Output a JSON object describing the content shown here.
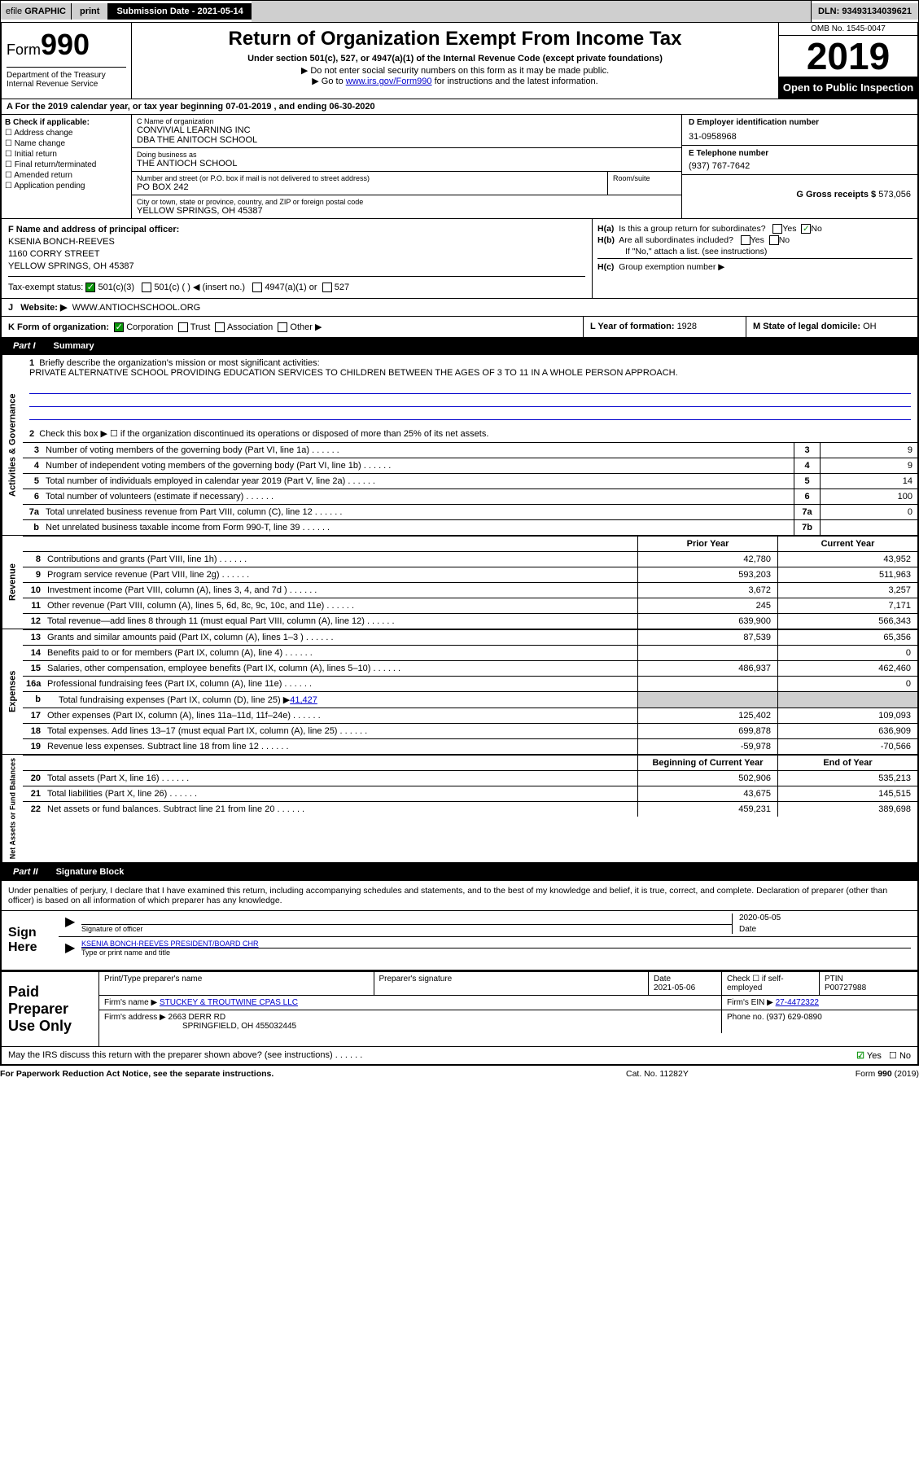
{
  "top_bar": {
    "efile_pre": "efile ",
    "efile_graphic": "GRAPHIC",
    "print": "print",
    "subdate_label": "Submission Date - ",
    "subdate_val": "2021-05-14",
    "dln_label": "DLN: ",
    "dln_val": "93493134039621"
  },
  "header": {
    "form_pre": "Form",
    "form_num": "990",
    "title": "Return of Organization Exempt From Income Tax",
    "sub1": "Under section 501(c), 527, or 4947(a)(1) of the Internal Revenue Code (except private foundations)",
    "sub2": "▶ Do not enter social security numbers on this form as it may be made public.",
    "sub3_pre": "▶ Go to ",
    "sub3_link": "www.irs.gov/Form990",
    "sub3_post": " for instructions and the latest information.",
    "dept1": "Department of the Treasury",
    "dept2": "Internal Revenue Service",
    "omb": "OMB No. 1545-0047",
    "year": "2019",
    "open_pub": "Open to Public Inspection"
  },
  "period": {
    "line_a": "A For the 2019 calendar year, or tax year beginning ",
    "begin": "07-01-2019",
    "mid": " , and ending ",
    "end": "06-30-2020"
  },
  "col_b": {
    "label": "B Check if applicable:",
    "items": [
      "Address change",
      "Name change",
      "Initial return",
      "Final return/terminated",
      "Amended return",
      "Application pending"
    ]
  },
  "col_c": {
    "c_label": "C Name of organization",
    "c_name1": "CONVIVIAL LEARNING INC",
    "c_name2": "DBA THE ANITOCH SCHOOL",
    "dba_label": "Doing business as",
    "dba": "THE ANTIOCH SCHOOL",
    "addr_label": "Number and street (or P.O. box if mail is not delivered to street address)",
    "addr": "PO BOX 242",
    "room_label": "Room/suite",
    "city_label": "City or town, state or province, country, and ZIP or foreign postal code",
    "city": "YELLOW SPRINGS, OH  45387",
    "f_label": "F  Name and address of principal officer:",
    "f_name": "KSENIA BONCH-REEVES",
    "f_addr1": "1160 CORRY STREET",
    "f_addr2": "YELLOW SPRINGS, OH  45387"
  },
  "col_right": {
    "d_label": "D Employer identification number",
    "d_val": "31-0958968",
    "e_label": "E Telephone number",
    "e_val": "(937) 767-7642",
    "g_label": "G Gross receipts $ ",
    "g_val": "573,056"
  },
  "tax_exempt": {
    "label": "Tax-exempt status:",
    "opt1": "501(c)(3)",
    "opt2": "501(c) (  ) ◀ (insert no.)",
    "opt3": "4947(a)(1) or",
    "opt4": "527"
  },
  "h_block": {
    "ha1": "H(a)",
    "ha2": "Is this a group return for subordinates?",
    "hb1": "H(b)",
    "hb2": "Are all subordinates included?",
    "hb3": "If \"No,\" attach a list. (see instructions)",
    "hc1": "H(c)",
    "hc2": "Group exemption number ▶",
    "yes": "Yes",
    "no": "No"
  },
  "website": {
    "j": "J",
    "label": "Website: ▶",
    "val": "WWW.ANTIOCHSCHOOL.ORG"
  },
  "k_row": {
    "k_label": "K Form of organization:",
    "k_opts": [
      "Corporation",
      "Trust",
      "Association",
      "Other ▶"
    ],
    "l_label": "L Year of formation: ",
    "l_val": "1928",
    "m_label": "M State of legal domicile: ",
    "m_val": "OH"
  },
  "part1": {
    "part": "Part I",
    "title": "Summary"
  },
  "summary": {
    "side1": "Activities & Governance",
    "q1_n": "1",
    "q1": "Briefly describe the organization's mission or most significant activities:",
    "q1_text": "PRIVATE ALTERNATIVE SCHOOL PROVIDING EDUCATION SERVICES TO CHILDREN BETWEEN THE AGES OF 3 TO 11 IN A WHOLE PERSON APPROACH.",
    "q2_n": "2",
    "q2": "Check this box ▶ ☐  if the organization discontinued its operations or disposed of more than 25% of its net assets.",
    "rows_a": [
      {
        "n": "3",
        "desc": "Number of voting members of the governing body (Part VI, line 1a)",
        "box": "3",
        "val": "9"
      },
      {
        "n": "4",
        "desc": "Number of independent voting members of the governing body (Part VI, line 1b)",
        "box": "4",
        "val": "9"
      },
      {
        "n": "5",
        "desc": "Total number of individuals employed in calendar year 2019 (Part V, line 2a)",
        "box": "5",
        "val": "14"
      },
      {
        "n": "6",
        "desc": "Total number of volunteers (estimate if necessary)",
        "box": "6",
        "val": "100"
      },
      {
        "n": "7a",
        "desc": "Total unrelated business revenue from Part VIII, column (C), line 12",
        "box": "7a",
        "val": "0"
      },
      {
        "n": "b",
        "desc": "Net unrelated business taxable income from Form 990-T, line 39",
        "box": "7b",
        "val": ""
      }
    ],
    "hdr_prior": "Prior Year",
    "hdr_current": "Current Year",
    "side2": "Revenue",
    "rows_r": [
      {
        "n": "8",
        "desc": "Contributions and grants (Part VIII, line 1h)",
        "c1": "42,780",
        "c2": "43,952"
      },
      {
        "n": "9",
        "desc": "Program service revenue (Part VIII, line 2g)",
        "c1": "593,203",
        "c2": "511,963"
      },
      {
        "n": "10",
        "desc": "Investment income (Part VIII, column (A), lines 3, 4, and 7d )",
        "c1": "3,672",
        "c2": "3,257"
      },
      {
        "n": "11",
        "desc": "Other revenue (Part VIII, column (A), lines 5, 6d, 8c, 9c, 10c, and 11e)",
        "c1": "245",
        "c2": "7,171"
      },
      {
        "n": "12",
        "desc": "Total revenue—add lines 8 through 11 (must equal Part VIII, column (A), line 12)",
        "c1": "639,900",
        "c2": "566,343"
      }
    ],
    "side3": "Expenses",
    "rows_e": [
      {
        "n": "13",
        "desc": "Grants and similar amounts paid (Part IX, column (A), lines 1–3 )",
        "c1": "87,539",
        "c2": "65,356"
      },
      {
        "n": "14",
        "desc": "Benefits paid to or for members (Part IX, column (A), line 4)",
        "c1": "",
        "c2": "0"
      },
      {
        "n": "15",
        "desc": "Salaries, other compensation, employee benefits (Part IX, column (A), lines 5–10)",
        "c1": "486,937",
        "c2": "462,460"
      },
      {
        "n": "16a",
        "desc": "Professional fundraising fees (Part IX, column (A), line 11e)",
        "c1": "",
        "c2": "0"
      }
    ],
    "row_16b": {
      "n": "b",
      "desc_pre": "Total fundraising expenses (Part IX, column (D), line 25) ▶",
      "desc_val": "41,427"
    },
    "rows_e2": [
      {
        "n": "17",
        "desc": "Other expenses (Part IX, column (A), lines 11a–11d, 11f–24e)",
        "c1": "125,402",
        "c2": "109,093"
      },
      {
        "n": "18",
        "desc": "Total expenses. Add lines 13–17 (must equal Part IX, column (A), line 25)",
        "c1": "699,878",
        "c2": "636,909"
      },
      {
        "n": "19",
        "desc": "Revenue less expenses. Subtract line 18 from line 12",
        "c1": "-59,978",
        "c2": "-70,566"
      }
    ],
    "side4": "Net Assets or Fund Balances",
    "hdr_begin": "Beginning of Current Year",
    "hdr_end": "End of Year",
    "rows_n": [
      {
        "n": "20",
        "desc": "Total assets (Part X, line 16)",
        "c1": "502,906",
        "c2": "535,213"
      },
      {
        "n": "21",
        "desc": "Total liabilities (Part X, line 26)",
        "c1": "43,675",
        "c2": "145,515"
      },
      {
        "n": "22",
        "desc": "Net assets or fund balances. Subtract line 21 from line 20",
        "c1": "459,231",
        "c2": "389,698"
      }
    ]
  },
  "part2": {
    "part": "Part II",
    "title": "Signature Block"
  },
  "sig": {
    "declaration": "Under penalties of perjury, I declare that I have examined this return, including accompanying schedules and statements, and to the best of my knowledge and belief, it is true, correct, and complete. Declaration of preparer (other than officer) is based on all information of which preparer has any knowledge.",
    "sign_here": "Sign Here",
    "sig_officer_label": "Signature of officer",
    "date_label": "Date",
    "sig_date": "2020-05-05",
    "name_title": "KSENIA BONCH-REEVES  PRESIDENT/BOARD CHR",
    "name_title_label": "Type or print name and title"
  },
  "paid": {
    "label": "Paid Preparer Use Only",
    "hdr": [
      "Print/Type preparer's name",
      "Preparer's signature",
      "Date",
      "",
      "PTIN"
    ],
    "r1_date": "2021-05-06",
    "r1_check": "Check ☐ if self-employed",
    "r1_ptin": "P00727988",
    "firm_name_label": "Firm's name    ▶ ",
    "firm_name": "STUCKEY & TROUTWINE CPAS LLC",
    "firm_ein_label": "Firm's EIN ▶ ",
    "firm_ein": "27-4472322",
    "firm_addr_label": "Firm's address ▶ ",
    "firm_addr1": "2663 DERR RD",
    "firm_addr2": "SPRINGFIELD, OH  455032445",
    "phone_label": "Phone no. ",
    "phone": "(937) 629-0890"
  },
  "footer": {
    "discuss": "May the IRS discuss this return with the preparer shown above? (see instructions)",
    "yes": "Yes",
    "no": "No",
    "paperwork": "For Paperwork Reduction Act Notice, see the separate instructions.",
    "cat": "Cat. No. 11282Y",
    "form": "Form 990 (2019)"
  }
}
